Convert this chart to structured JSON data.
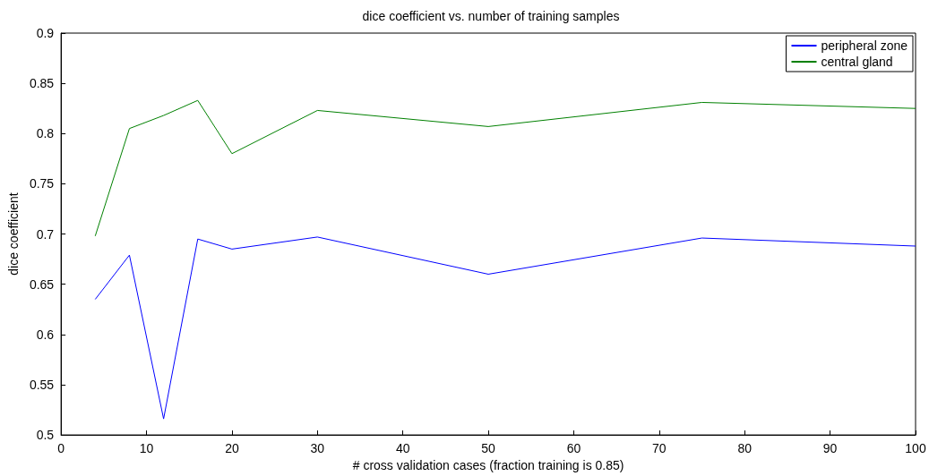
{
  "chart_data": {
    "type": "line",
    "title": "dice coefficient vs. number of training samples",
    "xlabel": "# cross validation cases (fraction training is 0.85)",
    "ylabel": "dice coefficient",
    "x": [
      4,
      8,
      12,
      16,
      20,
      30,
      50,
      75,
      100
    ],
    "series": [
      {
        "name": "peripheral zone",
        "color": "#0000ff",
        "values": [
          0.635,
          0.679,
          0.516,
          0.695,
          0.685,
          0.697,
          0.66,
          0.696,
          0.688
        ]
      },
      {
        "name": "central gland",
        "color": "#008000",
        "values": [
          0.698,
          0.805,
          0.818,
          0.833,
          0.78,
          0.823,
          0.807,
          0.831,
          0.825
        ]
      }
    ],
    "xlim": [
      0,
      100
    ],
    "xticks": [
      0,
      10,
      20,
      30,
      40,
      50,
      60,
      70,
      80,
      90,
      100
    ],
    "ylim": [
      0.5,
      0.9
    ],
    "yticks": [
      0.5,
      0.55,
      0.6,
      0.65,
      0.7,
      0.75,
      0.8,
      0.85,
      0.9
    ],
    "grid": false,
    "legend": "top right",
    "marker": "none",
    "line_style": "solid"
  }
}
